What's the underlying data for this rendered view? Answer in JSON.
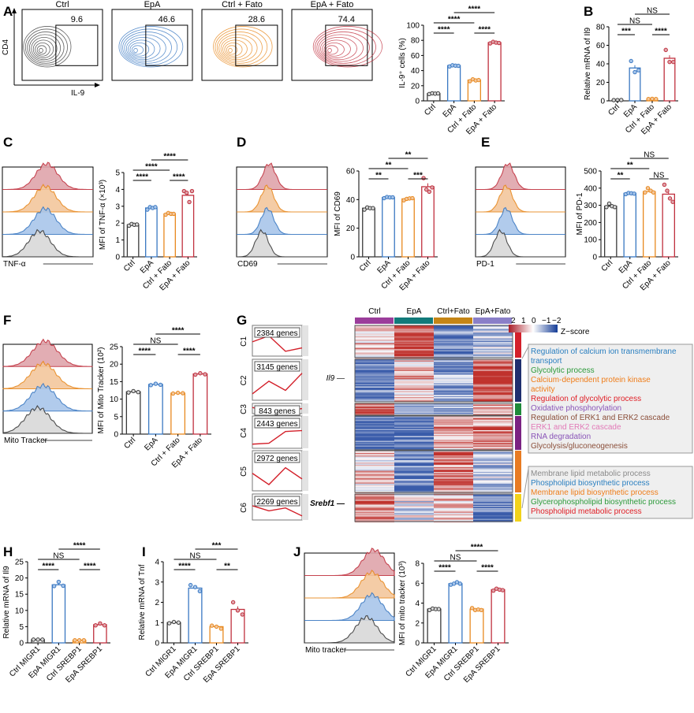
{
  "colors": {
    "ctrl": "#3a3a3a",
    "epa": "#3a78c2",
    "ctrl_fato": "#e8891f",
    "epa_fato": "#c0303e",
    "axis": "#000000"
  },
  "panel_letters": [
    "A",
    "B",
    "C",
    "D",
    "E",
    "F",
    "G",
    "H",
    "I",
    "J"
  ],
  "flow": {
    "xlabel": "IL-9",
    "ylabel": "CD4",
    "plots": [
      {
        "title": "Ctrl",
        "gate": "9.6"
      },
      {
        "title": "EpA",
        "gate": "46.6"
      },
      {
        "title": "Ctrl + Fato",
        "gate": "28.6"
      },
      {
        "title": "EpA + Fato",
        "gate": "74.4"
      }
    ]
  },
  "histograms": [
    {
      "panel": "C",
      "xlabel": "TNF-α"
    },
    {
      "panel": "D",
      "xlabel": "CD69"
    },
    {
      "panel": "E",
      "xlabel": "PD-1"
    },
    {
      "panel": "F",
      "xlabel": "Mito Tracker"
    },
    {
      "panel": "J",
      "xlabel": "Mito tracker"
    }
  ],
  "chart_data": [
    {
      "panel": "A",
      "type": "bar",
      "ylabel": "IL-9⁺ cells (%)",
      "ylim": [
        0,
        100
      ],
      "yticks": [
        0,
        20,
        40,
        60,
        80,
        100
      ],
      "categories": [
        "Ctrl",
        "EpA",
        "Ctrl + Fato",
        "EpA + Fato"
      ],
      "values": [
        9.6,
        46.6,
        27.5,
        77
      ],
      "points": [
        [
          9,
          10,
          9.5,
          9.8
        ],
        [
          45.5,
          47,
          46.5,
          46.3
        ],
        [
          26,
          28.5,
          27,
          27.5
        ],
        [
          76,
          78,
          77,
          76.5
        ]
      ],
      "sig": [
        [
          0,
          1,
          "****"
        ],
        [
          0,
          2,
          "****"
        ],
        [
          1,
          3,
          "****"
        ],
        [
          2,
          3,
          "****"
        ]
      ]
    },
    {
      "panel": "B",
      "type": "bar",
      "ylabel": "Relative mRNA of Il9",
      "ylim": [
        0,
        80
      ],
      "yticks": [
        0,
        20,
        40,
        60,
        80
      ],
      "categories": [
        "Ctrl",
        "EpA",
        "Ctrl + Fato",
        "EpA + Fato"
      ],
      "values": [
        0.8,
        35.5,
        2,
        46
      ],
      "points": [
        [
          0.8,
          0.8,
          0.9
        ],
        [
          43,
          31,
          33
        ],
        [
          2,
          2.2,
          2
        ],
        [
          55,
          42,
          42
        ]
      ],
      "sig": [
        [
          0,
          1,
          "***"
        ],
        [
          0,
          2,
          "NS"
        ],
        [
          1,
          3,
          "NS"
        ],
        [
          2,
          3,
          "****"
        ]
      ]
    },
    {
      "panel": "C",
      "type": "bar",
      "ylabel": "MFI of TNF-α (×10³)",
      "ylim": [
        0,
        5
      ],
      "yticks": [
        0,
        1,
        2,
        3,
        4,
        5
      ],
      "categories": [
        "Ctrl",
        "EpA",
        "Ctrl + Fato",
        "EpA + Fato"
      ],
      "values": [
        1.9,
        2.9,
        2.55,
        3.65
      ],
      "points": [
        [
          1.85,
          1.95,
          1.9,
          1.92
        ],
        [
          2.8,
          2.95,
          2.9,
          2.95
        ],
        [
          2.5,
          2.6,
          2.55,
          2.55
        ],
        [
          3.9,
          3.8,
          3.25,
          3.9
        ]
      ],
      "sig": [
        [
          0,
          1,
          "****"
        ],
        [
          0,
          2,
          "****"
        ],
        [
          1,
          3,
          "****"
        ],
        [
          2,
          3,
          "****"
        ]
      ]
    },
    {
      "panel": "D",
      "type": "bar",
      "ylabel": "MFI of CD69",
      "ylim": [
        0,
        60
      ],
      "yticks": [
        0,
        20,
        40,
        60
      ],
      "categories": [
        "Ctrl",
        "EpA",
        "Ctrl + Fato",
        "EpA + Fato"
      ],
      "values": [
        34,
        41.5,
        40.5,
        49
      ],
      "points": [
        [
          33,
          34.5,
          34,
          34
        ],
        [
          41,
          41.8,
          41.5,
          41.6
        ],
        [
          39.5,
          40.5,
          40.8,
          41
        ],
        [
          55,
          47,
          45.5,
          48.5
        ]
      ],
      "sig": [
        [
          0,
          1,
          "**"
        ],
        [
          0,
          2,
          "**"
        ],
        [
          1,
          3,
          "**"
        ],
        [
          2,
          3,
          "***"
        ]
      ]
    },
    {
      "panel": "E",
      "type": "bar",
      "ylabel": "MFI of PD-1",
      "ylim": [
        0,
        500
      ],
      "yticks": [
        0,
        100,
        200,
        300,
        400,
        500
      ],
      "categories": [
        "Ctrl",
        "EpA",
        "Ctrl + Fato",
        "EpA + Fato"
      ],
      "values": [
        295,
        370,
        380,
        365
      ],
      "points": [
        [
          290,
          310,
          295,
          290
        ],
        [
          365,
          372,
          370,
          368
        ],
        [
          375,
          400,
          385,
          375
        ],
        [
          420,
          385,
          340,
          320
        ]
      ],
      "sig": [
        [
          0,
          1,
          "**"
        ],
        [
          0,
          2,
          "**"
        ],
        [
          1,
          3,
          "NS"
        ],
        [
          2,
          3,
          "NS"
        ]
      ]
    },
    {
      "panel": "F",
      "type": "bar",
      "ylabel": "MFI of Mito Tracker (10²)",
      "ylim": [
        0,
        25
      ],
      "yticks": [
        0,
        5,
        10,
        15,
        20,
        25
      ],
      "categories": [
        "Ctrl",
        "EpA",
        "Ctrl + Fato",
        "EpA + Fato"
      ],
      "values": [
        12.1,
        14.2,
        11.7,
        17.2
      ],
      "points": [
        [
          11.9,
          12.3,
          12.0
        ],
        [
          14.0,
          14.4,
          14.1
        ],
        [
          11.6,
          11.8,
          11.7
        ],
        [
          17.0,
          17.4,
          17.1
        ]
      ],
      "sig": [
        [
          0,
          1,
          "****"
        ],
        [
          0,
          2,
          "NS"
        ],
        [
          1,
          3,
          "****"
        ],
        [
          2,
          3,
          "****"
        ]
      ]
    },
    {
      "panel": "H",
      "type": "bar",
      "ylabel": "Relative mRNA of Il9",
      "ylim": [
        0,
        25
      ],
      "yticks": [
        0,
        5,
        10,
        15,
        20,
        25
      ],
      "categories": [
        "Ctrl MIGR1",
        "EpA MIGR1",
        "Ctrl SREBP1",
        "EpA SREBP1"
      ],
      "values": [
        1,
        17.9,
        0.8,
        5.6
      ],
      "points": [
        [
          1,
          1,
          1
        ],
        [
          17.5,
          18.8,
          17.6
        ],
        [
          0.8,
          0.8,
          0.8
        ],
        [
          5.4,
          6.0,
          5.4
        ]
      ],
      "sig": [
        [
          0,
          1,
          "****"
        ],
        [
          0,
          2,
          "NS"
        ],
        [
          1,
          3,
          "****"
        ],
        [
          2,
          3,
          "****"
        ]
      ]
    },
    {
      "panel": "I",
      "type": "bar",
      "ylabel": "Relative mRNA of Tnf",
      "ylim": [
        0,
        4
      ],
      "yticks": [
        0,
        1,
        2,
        3,
        4
      ],
      "categories": [
        "Ctrl MIGR1",
        "EpA MIGR1",
        "Ctrl SREBP1",
        "EpA SREBP1"
      ],
      "values": [
        1.0,
        2.7,
        0.8,
        1.65
      ],
      "points": [
        [
          0.97,
          1.03,
          1.0
        ],
        [
          2.85,
          2.75,
          2.55
        ],
        [
          0.85,
          0.8,
          0.7
        ],
        [
          2.0,
          1.6,
          1.4
        ]
      ],
      "sig": [
        [
          0,
          1,
          "****"
        ],
        [
          0,
          2,
          "NS"
        ],
        [
          1,
          3,
          "***"
        ],
        [
          2,
          3,
          "**"
        ]
      ]
    },
    {
      "panel": "J",
      "type": "bar",
      "ylabel": "MFI of mito tracker (10³)",
      "ylim": [
        0,
        8
      ],
      "yticks": [
        0,
        2,
        4,
        6,
        8
      ],
      "categories": [
        "Ctrl MIGR1",
        "EpA MIGR1",
        "Ctrl SREBP1",
        "EpA SREBP1"
      ],
      "values": [
        3.4,
        5.95,
        3.4,
        5.35
      ],
      "points": [
        [
          3.3,
          3.45,
          3.4,
          3.4
        ],
        [
          5.85,
          5.95,
          6.1,
          5.95
        ],
        [
          3.5,
          3.3,
          3.35,
          3.3
        ],
        [
          5.25,
          5.45,
          5.35,
          5.3
        ]
      ],
      "sig": [
        [
          0,
          1,
          "****"
        ],
        [
          0,
          2,
          "NS"
        ],
        [
          1,
          3,
          "****"
        ],
        [
          2,
          3,
          "****"
        ]
      ]
    },
    {
      "panel": "G",
      "type": "heatmap",
      "columns": [
        "Ctrl",
        "EpA",
        "Ctrl+Fato",
        "EpA+Fato"
      ],
      "column_colors": [
        "#9b3d9b",
        "#127a7a",
        "#c48516",
        "#8a7fc8"
      ],
      "zscore_ticks": [
        "2",
        "1",
        "0",
        "−1",
        "−2"
      ],
      "zscore_label": "Z−score",
      "clusters": [
        {
          "name": "C1",
          "genes": "2384 genes",
          "color": "#d3202a",
          "profile": [
            0.3,
            1,
            -0.8,
            -0.4
          ]
        },
        {
          "name": "C2",
          "genes": "3145 genes",
          "color": "#1f2f6e",
          "profile": [
            -0.8,
            0.3,
            -0.5,
            1
          ]
        },
        {
          "name": "C3",
          "genes": "843 genes",
          "color": "#1e8a3a",
          "profile": [
            0.8,
            -0.6,
            -0.4,
            0.4
          ]
        },
        {
          "name": "C4",
          "genes": "2443 genes",
          "color": "#7a2382",
          "profile": [
            -0.9,
            -0.8,
            0.5,
            0.6
          ]
        },
        {
          "name": "C5",
          "genes": "2972 genes",
          "color": "#e87b22",
          "profile": [
            0.2,
            -0.8,
            0.7,
            -0.3
          ]
        },
        {
          "name": "C6",
          "genes": "2269 genes",
          "color": "#f2d21a",
          "profile": [
            0.6,
            -0.1,
            0.3,
            -0.8
          ]
        }
      ],
      "gene_labels": [
        "Il9",
        "Srebf1"
      ],
      "go_terms_1": [
        {
          "text": "Regulation of calcium ion transmembrane",
          "color": "#2a7fc0"
        },
        {
          "text": "transport",
          "color": "#2a7fc0"
        },
        {
          "text": "Glycolytic process",
          "color": "#2c9a3a"
        },
        {
          "text": "Calcium-dependent protein kinase",
          "color": "#ef7d1a"
        },
        {
          "text": "activity",
          "color": "#ef7d1a"
        },
        {
          "text": "Regulation of glycolytic process",
          "color": "#e01f26"
        },
        {
          "text": "Oxidative phosphorylation",
          "color": "#8a55b8"
        },
        {
          "text": "Regulation of ERK1 and ERK2 cascade",
          "color": "#8b4f3a"
        },
        {
          "text": "ERK1 and ERK2 cascade",
          "color": "#e27ab8"
        },
        {
          "text": "RNA degradation",
          "color": "#8a55b8"
        },
        {
          "text": "Glycolysis/gluconeogenesis",
          "color": "#8b4f3a"
        }
      ],
      "go_terms_2": [
        {
          "text": "Membrane lipid metabolic process",
          "color": "#8a8a8a"
        },
        {
          "text": "Phospholipid biosynthetic process",
          "color": "#2a7fc0"
        },
        {
          "text": "Membrane lipid biosynthetic process",
          "color": "#ef7d1a"
        },
        {
          "text": "Glycerophospholipid biosynthetic process",
          "color": "#2c9a3a"
        },
        {
          "text": "Phospholipid metabolic process",
          "color": "#e01f26"
        }
      ]
    }
  ]
}
